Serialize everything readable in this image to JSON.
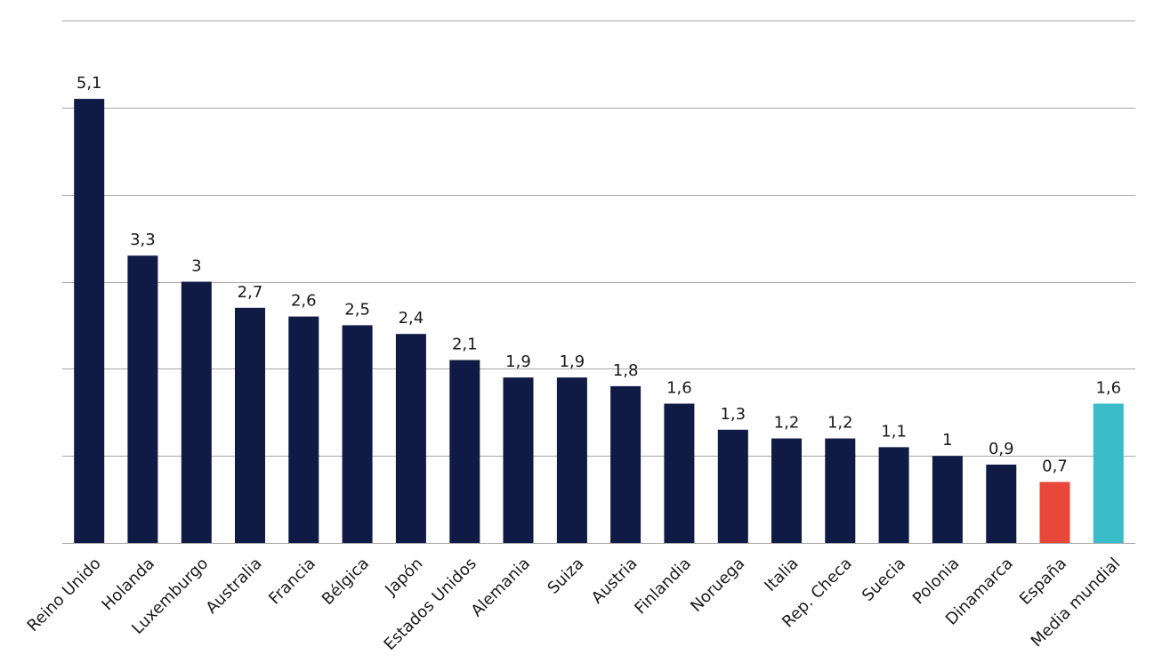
{
  "chart_data": {
    "type": "bar",
    "title": "",
    "xlabel": "",
    "ylabel": "",
    "ylim": [
      0,
      6
    ],
    "grid": true,
    "y_ticks_visible": false,
    "categories": [
      "Reino Unido",
      "Holanda",
      "Luxemburgo",
      "Australia",
      "Francia",
      "Bélgica",
      "Japón",
      "Estados Unidos",
      "Alemania",
      "Suiza",
      "Austria",
      "Finlandia",
      "Noruega",
      "Italia",
      "Rep. Checa",
      "Suecia",
      "Polonia",
      "Dinamarca",
      "España",
      "Media mundial"
    ],
    "values": [
      5.1,
      3.3,
      3,
      2.7,
      2.6,
      2.5,
      2.4,
      2.1,
      1.9,
      1.9,
      1.8,
      1.6,
      1.3,
      1.2,
      1.2,
      1.1,
      1,
      0.9,
      0.7,
      1.6
    ],
    "value_labels": [
      "5,1",
      "3,3",
      "3",
      "2,7",
      "2,6",
      "2,5",
      "2,4",
      "2,1",
      "1,9",
      "1,9",
      "1,8",
      "1,6",
      "1,3",
      "1,2",
      "1,2",
      "1,1",
      "1",
      "0,9",
      "0,7",
      "1,6"
    ],
    "colors": {
      "default": "#0f1a45",
      "highlight": "#e8473a",
      "average": "#38bcc8"
    },
    "bar_color_keys": [
      "default",
      "default",
      "default",
      "default",
      "default",
      "default",
      "default",
      "default",
      "default",
      "default",
      "default",
      "default",
      "default",
      "default",
      "default",
      "default",
      "default",
      "default",
      "highlight",
      "average"
    ]
  }
}
